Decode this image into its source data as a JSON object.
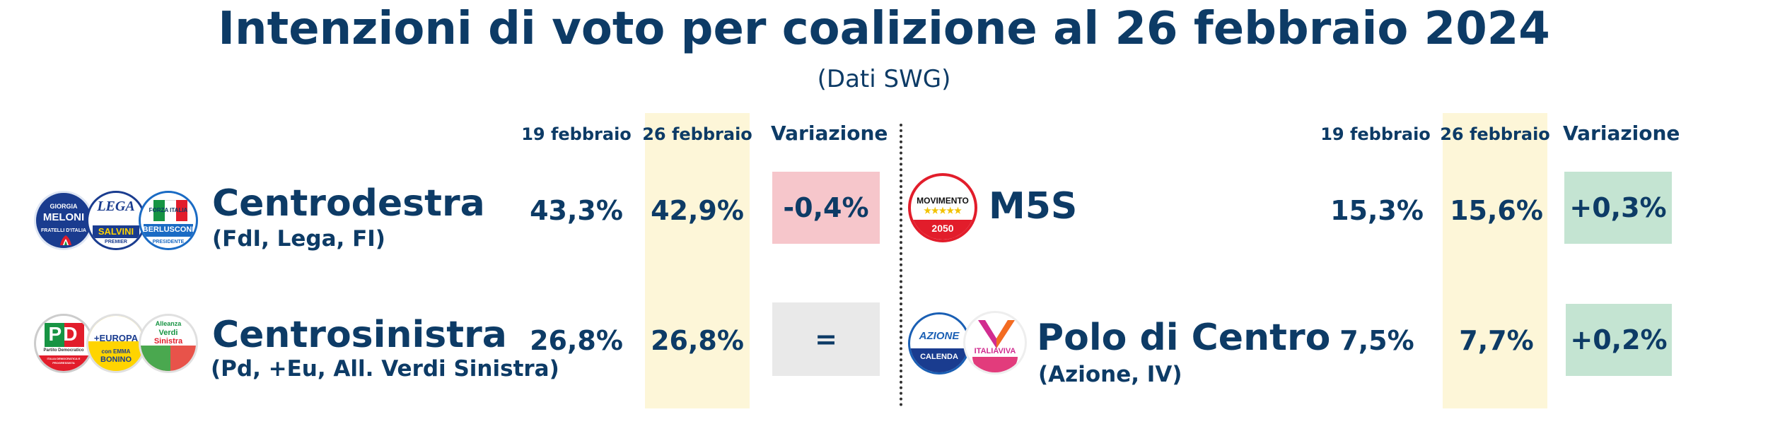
{
  "title": "Intenzioni di voto per coalizione al 26 febbraio 2024",
  "subtitle": "(Dati SWG)",
  "columns": {
    "prev": "19 febbraio",
    "curr": "26 febbraio",
    "delta": "Variazione"
  },
  "colors": {
    "navy": "#0d3b66",
    "highlight_band": "#fdf6d8",
    "negative": "#f6c6cb",
    "positive": "#c4e4d2",
    "neutral": "#e9e9e9"
  },
  "chart_data": {
    "type": "table",
    "rows": [
      {
        "name": "Centrodestra",
        "members": "(FdI, Lega, FI)",
        "prev": "43,3%",
        "curr": "42,9%",
        "delta": "-0,4%",
        "trend": "negative",
        "logos": [
          {
            "icon": "fdi-meloni-logo",
            "text": [
              "GIORGIA",
              "MELONI",
              "FRATELLI D'ITALIA"
            ]
          },
          {
            "icon": "lega-salvini-logo",
            "text": [
              "LEGA",
              "SALVINI",
              "PREMIER"
            ]
          },
          {
            "icon": "forza-italia-berlusconi-logo",
            "text": [
              "FORZA ITALIA",
              "BERLUSCONI",
              "PRESIDENTE"
            ]
          }
        ]
      },
      {
        "name": "Centrosinistra",
        "members": "(Pd, +Eu, All. Verdi Sinistra)",
        "prev": "26,8%",
        "curr": "26,8%",
        "delta": "=",
        "trend": "neutral",
        "logos": [
          {
            "icon": "pd-logo",
            "text": [
              "PD",
              "Partito Democratico",
              "ITALIA DEMOCRATICA E PROGRESSISTA"
            ]
          },
          {
            "icon": "piu-europa-logo",
            "text": [
              "+EUROPA",
              "con EMMA",
              "BONINO"
            ]
          },
          {
            "icon": "avs-logo",
            "text": [
              "Alleanza",
              "Verdi",
              "Sinistra"
            ]
          }
        ]
      },
      {
        "name": "M5S",
        "members": "",
        "prev": "15,3%",
        "curr": "15,6%",
        "delta": "+0,3%",
        "trend": "positive",
        "logos": [
          {
            "icon": "m5s-logo",
            "text": [
              "MOVIMENTO",
              "★★★★★",
              "2050"
            ]
          }
        ]
      },
      {
        "name": "Polo di Centro",
        "members": "(Azione, IV)",
        "prev": "7,5%",
        "curr": "7,7%",
        "delta": "+0,2%",
        "trend": "positive",
        "logos": [
          {
            "icon": "azione-calenda-logo",
            "text": [
              "AZIONE",
              "CALENDA"
            ]
          },
          {
            "icon": "italia-viva-logo",
            "text": [
              "ITALIAVIVA"
            ]
          }
        ]
      }
    ]
  }
}
